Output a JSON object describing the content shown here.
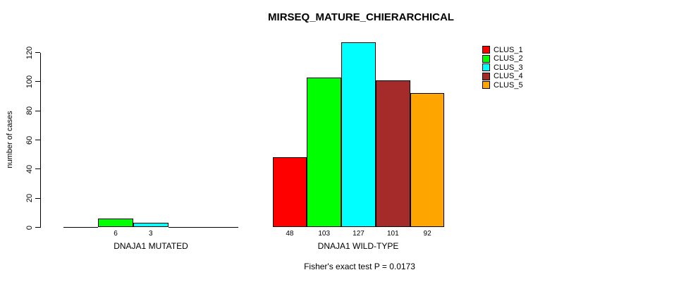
{
  "title": "MIRSEQ_MATURE_CHIERARCHICAL",
  "annotation": "Fisher's exact test P = 0.0173",
  "chart_data": {
    "type": "bar",
    "title": "MIRSEQ_MATURE_CHIERARCHICAL",
    "ylabel": "number of cases",
    "xlabel": "",
    "ylim": [
      0,
      130
    ],
    "yticks": [
      0,
      20,
      40,
      60,
      80,
      100,
      120
    ],
    "grid": false,
    "legend_position": "top-right",
    "series_names": [
      "CLUS_1",
      "CLUS_2",
      "CLUS_3",
      "CLUS_4",
      "CLUS_5"
    ],
    "colors": [
      "#ff0000",
      "#00ff00",
      "#00ffff",
      "#a52a2a",
      "#ffa500"
    ],
    "groups": [
      {
        "label": "DNAJA1 MUTATED",
        "values": [
          0,
          6,
          3,
          0,
          0
        ]
      },
      {
        "label": "DNAJA1 WILD-TYPE",
        "values": [
          48,
          103,
          127,
          101,
          92
        ]
      }
    ],
    "bar_value_labels": {
      "DNAJA1 MUTATED": [
        "6",
        "3"
      ],
      "DNAJA1 WILD-TYPE": [
        "48",
        "103",
        "127",
        "101",
        "92"
      ]
    },
    "annotation": "Fisher's exact test P = 0.0173"
  }
}
